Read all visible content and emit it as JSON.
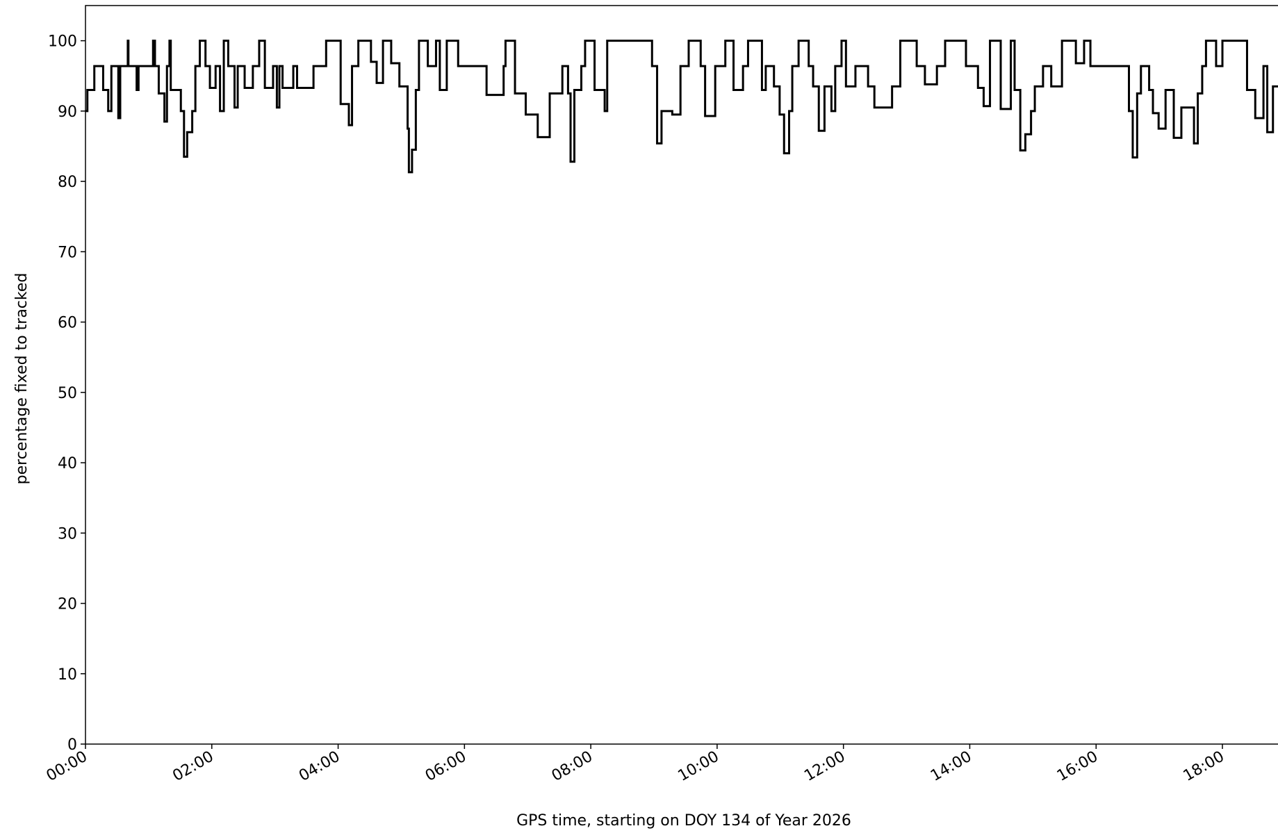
{
  "chart_data": {
    "type": "line",
    "drawstyle": "steps-post",
    "xlabel": "GPS time, starting on DOY 134 of Year 2026",
    "ylabel": "percentage fixed to tracked",
    "xlim": [
      0,
      18.88
    ],
    "ylim": [
      0,
      105
    ],
    "xticks": [
      {
        "value": 0,
        "label": "00:00"
      },
      {
        "value": 2,
        "label": "02:00"
      },
      {
        "value": 4,
        "label": "04:00"
      },
      {
        "value": 6,
        "label": "06:00"
      },
      {
        "value": 8,
        "label": "08:00"
      },
      {
        "value": 10,
        "label": "10:00"
      },
      {
        "value": 12,
        "label": "12:00"
      },
      {
        "value": 14,
        "label": "14:00"
      },
      {
        "value": 16,
        "label": "16:00"
      },
      {
        "value": 18,
        "label": "18:00"
      }
    ],
    "yticks": [
      0,
      10,
      20,
      30,
      40,
      50,
      60,
      70,
      80,
      90,
      100
    ],
    "series": [
      {
        "color": "#000000",
        "x": [
          0,
          0.03,
          0.14,
          0.28,
          0.36,
          0.41,
          0.52,
          0.55,
          0.67,
          0.68,
          0.81,
          0.84,
          0.97,
          1.07,
          1.1,
          1.16,
          1.25,
          1.29,
          1.33,
          1.35,
          1.51,
          1.56,
          1.61,
          1.69,
          1.74,
          1.81,
          1.9,
          1.97,
          2.06,
          2.13,
          2.19,
          2.26,
          2.36,
          2.41,
          2.52,
          2.65,
          2.75,
          2.84,
          2.97,
          3.03,
          3.07,
          3.12,
          3.29,
          3.35,
          3.61,
          3.81,
          4.04,
          4.17,
          4.22,
          4.32,
          4.52,
          4.61,
          4.71,
          4.84,
          4.97,
          5.1,
          5.12,
          5.17,
          5.23,
          5.28,
          5.42,
          5.55,
          5.61,
          5.72,
          5.9,
          6.35,
          6.62,
          6.65,
          6.8,
          6.97,
          7.16,
          7.35,
          7.55,
          7.64,
          7.68,
          7.74,
          7.85,
          7.91,
          8.06,
          8.22,
          8.26,
          8.58,
          8.97,
          9.05,
          9.12,
          9.29,
          9.42,
          9.55,
          9.74,
          9.81,
          9.97,
          10.13,
          10.26,
          10.41,
          10.49,
          10.71,
          10.77,
          10.9,
          10.99,
          11.06,
          11.14,
          11.19,
          11.29,
          11.45,
          11.52,
          11.61,
          11.7,
          11.81,
          11.87,
          11.97,
          12.04,
          12.19,
          12.39,
          12.49,
          12.77,
          12.9,
          13.16,
          13.29,
          13.48,
          13.61,
          13.94,
          14.13,
          14.22,
          14.32,
          14.49,
          14.65,
          14.71,
          14.8,
          14.88,
          14.97,
          15.03,
          15.16,
          15.29,
          15.46,
          15.68,
          15.81,
          15.91,
          16.13,
          16.39,
          16.52,
          16.58,
          16.65,
          16.71,
          16.84,
          16.9,
          16.99,
          17.1,
          17.23,
          17.35,
          17.55,
          17.61,
          17.68,
          17.74,
          17.9,
          18.0,
          18.39,
          18.52,
          18.65,
          18.71,
          18.8,
          18.88
        ],
        "values": [
          90,
          93,
          96.4,
          93,
          90,
          96.4,
          89,
          96.4,
          100,
          96.4,
          93,
          96.4,
          96.4,
          100,
          96.4,
          92.5,
          88.5,
          96.4,
          100,
          93,
          90,
          83.5,
          87,
          90,
          96.4,
          100,
          96.4,
          93.3,
          96.4,
          90,
          100,
          96.4,
          90.5,
          96.4,
          93.3,
          96.4,
          100,
          93.3,
          96.4,
          90.5,
          96.4,
          93.3,
          96.4,
          93.3,
          96.4,
          100,
          91,
          88,
          96.4,
          100,
          97,
          94,
          100,
          96.8,
          93.5,
          87.5,
          81.3,
          84.5,
          93,
          100,
          96.4,
          100,
          93,
          100,
          96.4,
          92.3,
          96.4,
          100,
          92.5,
          89.5,
          86.3,
          92.5,
          96.4,
          92.5,
          82.8,
          93,
          96.4,
          100,
          93,
          90,
          100,
          100,
          96.4,
          85.4,
          90,
          89.5,
          96.4,
          100,
          96.4,
          89.3,
          96.4,
          100,
          93,
          96.4,
          100,
          93,
          96.4,
          93.5,
          89.5,
          84,
          90,
          96.4,
          100,
          96.4,
          93.5,
          87.2,
          93.5,
          90,
          96.4,
          100,
          93.5,
          96.4,
          93.5,
          90.5,
          93.5,
          100,
          96.4,
          93.8,
          96.4,
          100,
          96.4,
          93.3,
          90.7,
          100,
          90.3,
          100,
          93,
          84.4,
          86.7,
          90,
          93.5,
          96.4,
          93.5,
          100,
          96.8,
          100,
          96.4,
          96.4,
          96.4,
          90,
          83.4,
          92.5,
          96.4,
          93,
          89.7,
          87.5,
          93,
          86.2,
          90.5,
          85.4,
          92.5,
          96.4,
          100,
          96.4,
          100,
          93,
          89,
          96.4,
          87,
          93.5,
          93.5
        ]
      }
    ]
  }
}
